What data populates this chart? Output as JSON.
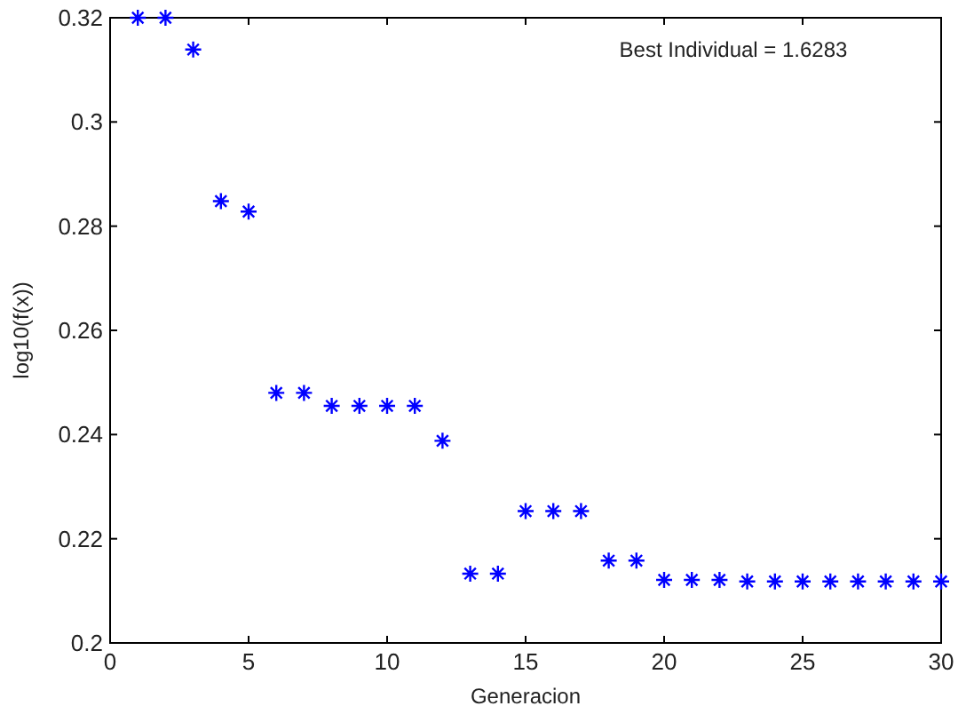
{
  "chart_data": {
    "type": "scatter",
    "xlabel": "Generacion",
    "ylabel": "log10(f(x))",
    "annotations": [
      "Best Individual = 1.6283"
    ],
    "x": [
      1,
      2,
      3,
      4,
      5,
      6,
      7,
      8,
      9,
      10,
      11,
      12,
      13,
      14,
      15,
      16,
      17,
      18,
      19,
      20,
      21,
      22,
      23,
      24,
      25,
      26,
      27,
      28,
      29,
      30
    ],
    "series": [
      {
        "color": "#0000ff",
        "values": [
          0.32,
          0.32,
          0.3139,
          0.2848,
          0.2828,
          0.248,
          0.248,
          0.2455,
          0.2455,
          0.2455,
          0.2455,
          0.2388,
          0.2133,
          0.2133,
          0.2253,
          0.2253,
          0.2253,
          0.2158,
          0.2158,
          0.2121,
          0.2121,
          0.2121,
          0.2118,
          0.2118,
          0.2118,
          0.2118,
          0.2118,
          0.2118,
          0.2118,
          0.2118
        ]
      }
    ],
    "xlim": [
      0,
      30
    ],
    "xticks": [
      0,
      5,
      10,
      15,
      20,
      25,
      30
    ],
    "ylim": [
      0.2,
      0.32
    ],
    "yticks": [
      0.2,
      0.22,
      0.24,
      0.26,
      0.28,
      0.3,
      0.32
    ],
    "grid": false,
    "marker": "cross"
  }
}
